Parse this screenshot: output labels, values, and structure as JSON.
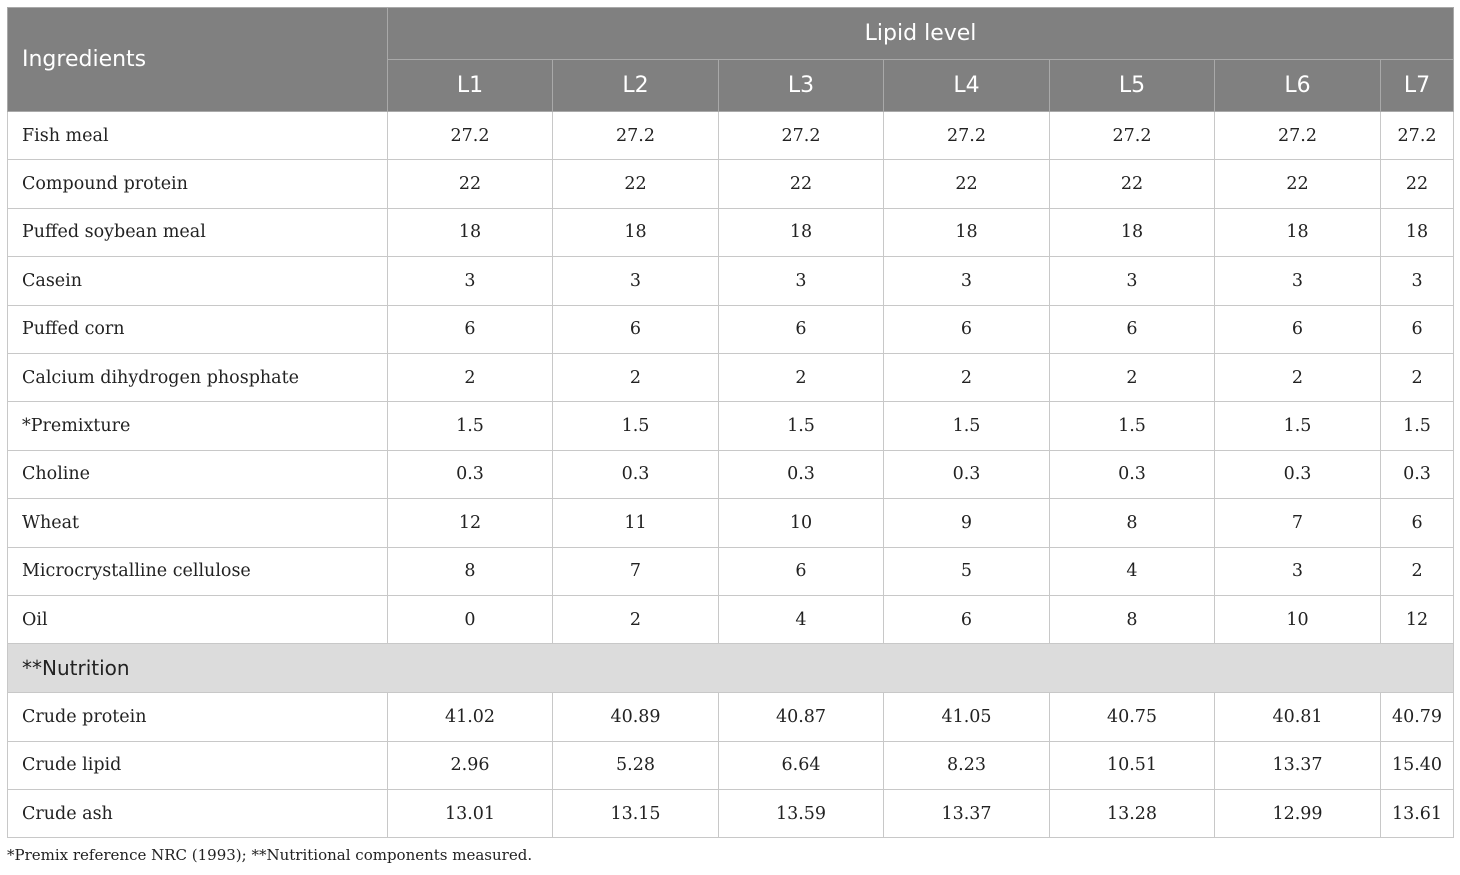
{
  "table": {
    "ingredients_header": "Ingredients",
    "group_header": "Lipid level",
    "levels": [
      "L1",
      "L2",
      "L3",
      "L4",
      "L5",
      "L6",
      "L7"
    ],
    "ingredient_rows": [
      {
        "label": "Fish meal",
        "values": [
          "27.2",
          "27.2",
          "27.2",
          "27.2",
          "27.2",
          "27.2",
          "27.2"
        ]
      },
      {
        "label": "Compound protein",
        "values": [
          "22",
          "22",
          "22",
          "22",
          "22",
          "22",
          "22"
        ]
      },
      {
        "label": "Puffed soybean meal",
        "values": [
          "18",
          "18",
          "18",
          "18",
          "18",
          "18",
          "18"
        ]
      },
      {
        "label": "Casein",
        "values": [
          "3",
          "3",
          "3",
          "3",
          "3",
          "3",
          "3"
        ]
      },
      {
        "label": "Puffed corn",
        "values": [
          "6",
          "6",
          "6",
          "6",
          "6",
          "6",
          "6"
        ]
      },
      {
        "label": "Calcium dihydrogen phosphate",
        "values": [
          "2",
          "2",
          "2",
          "2",
          "2",
          "2",
          "2"
        ]
      },
      {
        "label": "*Premixture",
        "values": [
          "1.5",
          "1.5",
          "1.5",
          "1.5",
          "1.5",
          "1.5",
          "1.5"
        ]
      },
      {
        "label": "Choline",
        "values": [
          "0.3",
          "0.3",
          "0.3",
          "0.3",
          "0.3",
          "0.3",
          "0.3"
        ]
      },
      {
        "label": "Wheat",
        "values": [
          "12",
          "11",
          "10",
          "9",
          "8",
          "7",
          "6"
        ]
      },
      {
        "label": "Microcrystalline cellulose",
        "values": [
          "8",
          "7",
          "6",
          "5",
          "4",
          "3",
          "2"
        ]
      },
      {
        "label": "Oil",
        "values": [
          "0",
          "2",
          "4",
          "6",
          "8",
          "10",
          "12"
        ]
      }
    ],
    "nutrition_header": "**Nutrition",
    "nutrition_rows": [
      {
        "label": "Crude protein",
        "values": [
          "41.02",
          "40.89",
          "40.87",
          "41.05",
          "40.75",
          "40.81",
          "40.79"
        ]
      },
      {
        "label": "Crude lipid",
        "values": [
          "2.96",
          "5.28",
          "6.64",
          "8.23",
          "10.51",
          "13.37",
          "15.40"
        ]
      },
      {
        "label": "Crude ash",
        "values": [
          "13.01",
          "13.15",
          "13.59",
          "13.37",
          "13.28",
          "12.99",
          "13.61"
        ]
      }
    ]
  },
  "footnote": "*Premix reference NRC (1993); **Nutritional components measured."
}
